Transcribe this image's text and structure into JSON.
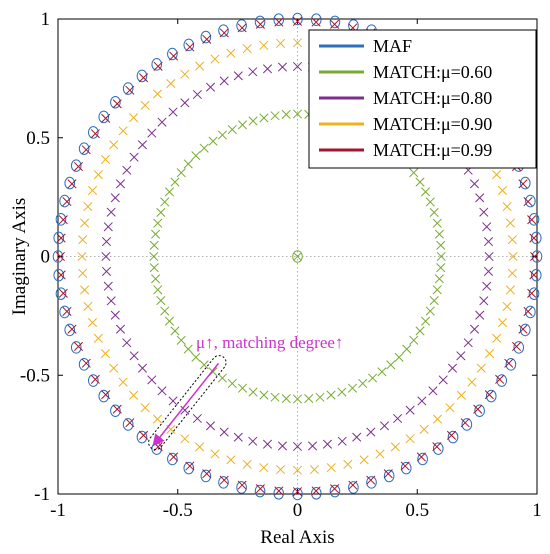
{
  "chart_data": {
    "type": "scatter",
    "title": "",
    "xlabel": "Real Axis",
    "ylabel": "Imaginary Axis",
    "xlim": [
      -1,
      1
    ],
    "ylim": [
      -1,
      1
    ],
    "x_ticks": [
      "-1",
      "-0.5",
      "0",
      "0.5",
      "1"
    ],
    "y_ticks": [
      "-1",
      "-0.5",
      "0",
      "0.5",
      "1"
    ],
    "grid": "dotted lines at 0",
    "legend_position": "top-right",
    "points_per_series": 80,
    "series": [
      {
        "name": "MAF",
        "marker": "o",
        "color": "#2b6fbd",
        "zeros_radius": 1.0,
        "pole_at_origin": false
      },
      {
        "name": "MATCH:μ=0.60",
        "marker": "x",
        "color": "#77ac30",
        "zeros_radius": 0.6,
        "pole_at_origin": true
      },
      {
        "name": "MATCH:μ=0.80",
        "marker": "x",
        "color": "#7e2f8e",
        "zeros_radius": 0.8,
        "pole_at_origin": false
      },
      {
        "name": "MATCH:μ=0.90",
        "marker": "x",
        "color": "#edb120",
        "zeros_radius": 0.9,
        "pole_at_origin": false
      },
      {
        "name": "MATCH:μ=0.99",
        "marker": "x",
        "color": "#a2142f",
        "zeros_radius": 0.99,
        "pole_at_origin": false
      }
    ],
    "annotation": {
      "text": "μ↑, matching degree↑",
      "color": "#cc33cc",
      "arrow_from": [
        -0.33,
        -0.45
      ],
      "arrow_to": [
        -0.59,
        -0.78
      ]
    }
  }
}
